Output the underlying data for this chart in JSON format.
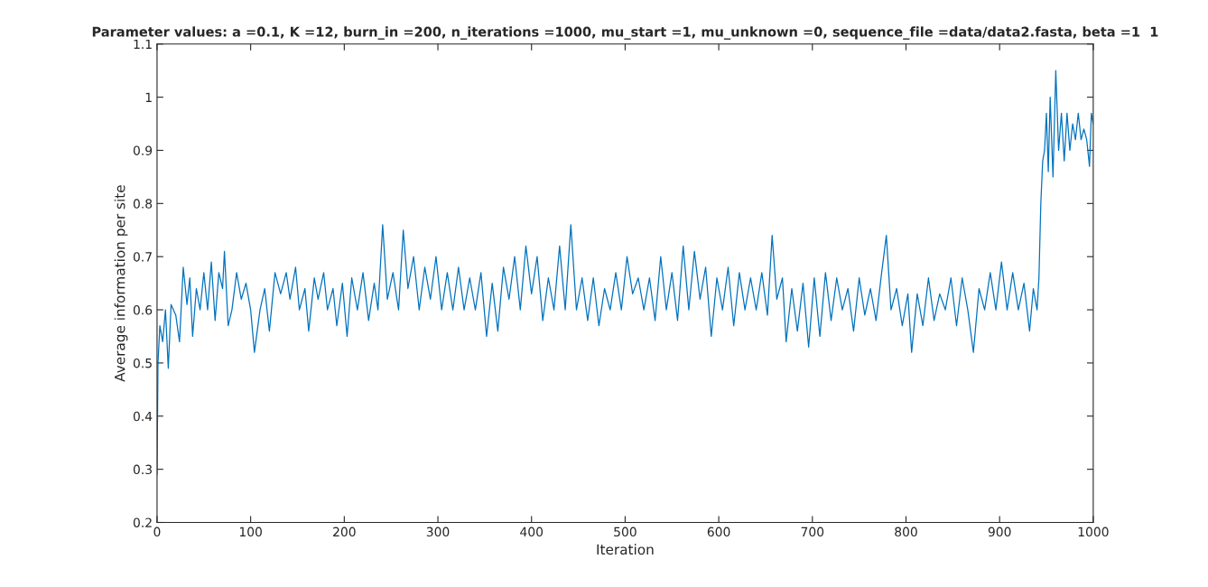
{
  "chart_data": {
    "type": "line",
    "title": "Parameter values: a =0.1, K =12, burn_in =200, n_iterations =1000, mu_start =1, mu_unknown =0, sequence_file =data/data2.fasta, beta =1  1",
    "xlabel": "Iteration",
    "ylabel": "Average information per site",
    "xlim": [
      0,
      1000
    ],
    "xticks": [
      0,
      100,
      200,
      300,
      400,
      500,
      600,
      700,
      800,
      900,
      1000
    ],
    "ylim": [
      0.2,
      1.1
    ],
    "yticks": [
      0.2,
      0.3,
      0.4,
      0.5,
      0.6,
      0.7,
      0.8,
      0.9,
      1,
      1.1
    ],
    "grid": false,
    "legend": false,
    "marker": "none",
    "line_style": "solid",
    "series": [
      {
        "color": "#0072bd",
        "x": [
          0,
          1,
          3,
          6,
          9,
          12,
          15,
          20,
          24,
          28,
          32,
          35,
          38,
          42,
          46,
          50,
          54,
          58,
          62,
          66,
          70,
          72,
          76,
          80,
          85,
          90,
          95,
          100,
          104,
          110,
          115,
          120,
          126,
          132,
          138,
          142,
          148,
          152,
          158,
          162,
          168,
          172,
          178,
          182,
          188,
          192,
          198,
          203,
          208,
          214,
          220,
          226,
          232,
          236,
          241,
          246,
          252,
          258,
          263,
          268,
          274,
          280,
          286,
          292,
          298,
          304,
          310,
          316,
          322,
          328,
          334,
          340,
          346,
          352,
          358,
          364,
          370,
          376,
          382,
          388,
          394,
          400,
          406,
          412,
          418,
          424,
          430,
          436,
          442,
          448,
          454,
          460,
          466,
          472,
          478,
          484,
          490,
          496,
          502,
          508,
          514,
          520,
          526,
          532,
          538,
          544,
          550,
          556,
          562,
          568,
          574,
          580,
          586,
          592,
          598,
          604,
          610,
          616,
          622,
          628,
          634,
          640,
          646,
          652,
          657,
          662,
          668,
          672,
          678,
          684,
          690,
          696,
          702,
          708,
          714,
          720,
          726,
          732,
          738,
          744,
          750,
          756,
          762,
          768,
          774,
          779,
          784,
          790,
          796,
          802,
          806,
          812,
          818,
          824,
          830,
          836,
          842,
          848,
          854,
          860,
          866,
          872,
          878,
          884,
          890,
          896,
          902,
          908,
          914,
          920,
          926,
          932,
          936,
          940,
          942,
          944,
          946,
          948,
          950,
          952,
          954,
          957,
          960,
          963,
          966,
          969,
          972,
          975,
          978,
          981,
          984,
          987,
          990,
          993,
          996,
          998,
          1000
        ],
        "values": [
          0.29,
          0.5,
          0.57,
          0.54,
          0.6,
          0.49,
          0.61,
          0.59,
          0.54,
          0.68,
          0.61,
          0.66,
          0.55,
          0.64,
          0.6,
          0.67,
          0.6,
          0.69,
          0.58,
          0.67,
          0.64,
          0.71,
          0.57,
          0.6,
          0.67,
          0.62,
          0.65,
          0.6,
          0.52,
          0.6,
          0.64,
          0.56,
          0.67,
          0.63,
          0.67,
          0.62,
          0.68,
          0.6,
          0.64,
          0.56,
          0.66,
          0.62,
          0.67,
          0.6,
          0.64,
          0.57,
          0.65,
          0.55,
          0.66,
          0.6,
          0.67,
          0.58,
          0.65,
          0.6,
          0.76,
          0.62,
          0.67,
          0.6,
          0.75,
          0.64,
          0.7,
          0.6,
          0.68,
          0.62,
          0.7,
          0.6,
          0.67,
          0.6,
          0.68,
          0.6,
          0.66,
          0.6,
          0.67,
          0.55,
          0.65,
          0.56,
          0.68,
          0.62,
          0.7,
          0.6,
          0.72,
          0.63,
          0.7,
          0.58,
          0.66,
          0.6,
          0.72,
          0.6,
          0.76,
          0.6,
          0.66,
          0.58,
          0.66,
          0.57,
          0.64,
          0.6,
          0.67,
          0.6,
          0.7,
          0.63,
          0.66,
          0.6,
          0.66,
          0.58,
          0.7,
          0.6,
          0.67,
          0.58,
          0.72,
          0.6,
          0.71,
          0.62,
          0.68,
          0.55,
          0.66,
          0.6,
          0.68,
          0.57,
          0.67,
          0.6,
          0.66,
          0.6,
          0.67,
          0.59,
          0.74,
          0.62,
          0.66,
          0.54,
          0.64,
          0.56,
          0.65,
          0.53,
          0.66,
          0.55,
          0.67,
          0.58,
          0.66,
          0.6,
          0.64,
          0.56,
          0.66,
          0.59,
          0.64,
          0.58,
          0.67,
          0.74,
          0.6,
          0.64,
          0.57,
          0.63,
          0.52,
          0.63,
          0.57,
          0.66,
          0.58,
          0.63,
          0.6,
          0.66,
          0.57,
          0.66,
          0.6,
          0.52,
          0.64,
          0.6,
          0.67,
          0.6,
          0.69,
          0.6,
          0.67,
          0.6,
          0.65,
          0.56,
          0.64,
          0.6,
          0.66,
          0.8,
          0.88,
          0.9,
          0.97,
          0.86,
          1.0,
          0.85,
          1.05,
          0.9,
          0.97,
          0.88,
          0.97,
          0.9,
          0.95,
          0.92,
          0.97,
          0.92,
          0.94,
          0.92,
          0.87,
          0.97,
          0.95
        ]
      }
    ]
  }
}
